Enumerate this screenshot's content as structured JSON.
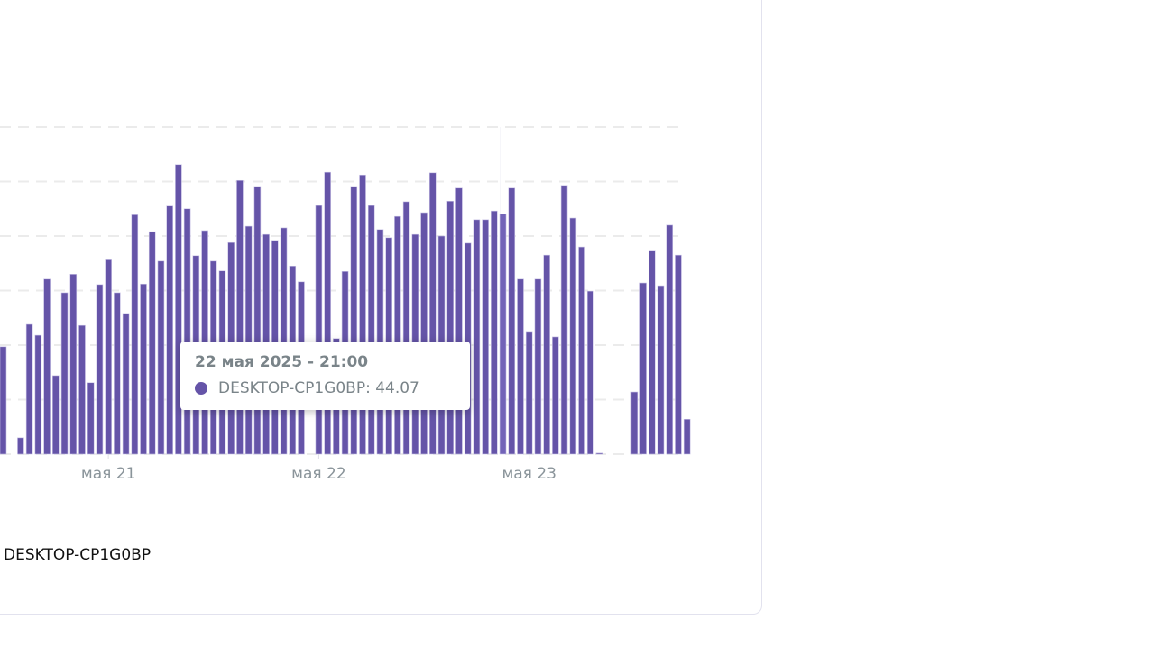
{
  "chart_data": {
    "type": "bar",
    "title": "",
    "xlabel": "",
    "ylabel": "",
    "ylim": [
      0,
      60
    ],
    "grid": true,
    "gridlines": [
      0,
      10,
      20,
      30,
      40,
      50,
      60
    ],
    "interval": "hourly",
    "x_start": "20 мая 12:00",
    "x_ticks": [
      {
        "label": "мая 21",
        "index": 12
      },
      {
        "label": "мая 22",
        "index": 36
      },
      {
        "label": "мая 23",
        "index": 60
      }
    ],
    "series": [
      {
        "name": "DESKTOP-CP1G0BP",
        "color": "#6554a8",
        "values": [
          19.7,
          0,
          3.0,
          23.8,
          21.8,
          32.1,
          14.4,
          29.6,
          33.0,
          23.6,
          13.1,
          31.1,
          35.8,
          29.6,
          25.8,
          43.9,
          31.2,
          40.8,
          35.4,
          45.5,
          53.1,
          45.0,
          36.4,
          41.0,
          35.4,
          33.6,
          38.8,
          50.2,
          41.8,
          49.1,
          40.3,
          39.2,
          41.5,
          34.5,
          31.6,
          0,
          45.6,
          51.7,
          21.2,
          33.5,
          49.1,
          51.2,
          45.6,
          41.2,
          39.7,
          43.6,
          46.3,
          40.3,
          44.3,
          51.6,
          40.0,
          46.4,
          48.8,
          38.7,
          43.0,
          43.0,
          44.6,
          44.07,
          48.8,
          32.1,
          22.5,
          32.1,
          36.5,
          21.5,
          49.3,
          43.3,
          38.0,
          29.9,
          0.2,
          0,
          0,
          0,
          11.4,
          31.4,
          37.4,
          30.9,
          42.0,
          36.5,
          6.4
        ]
      }
    ],
    "highlighted_index": 57,
    "legend": "bottom-left"
  },
  "tooltip": {
    "title": "22 мая 2025 - 21:00",
    "row": "DESKTOP-CP1G0BP: 44.07"
  },
  "legend": {
    "label": "DESKTOP-CP1G0BP"
  }
}
